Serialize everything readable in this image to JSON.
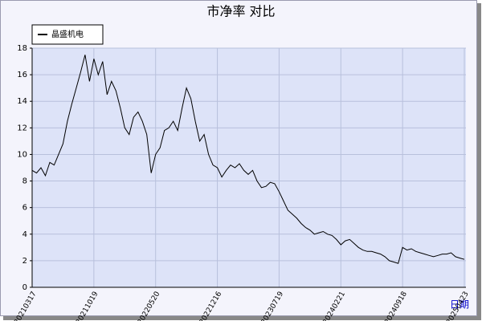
{
  "chart_data": {
    "type": "line",
    "title": "市净率  对比",
    "x_label": "日期",
    "categories": [
      "20210317",
      null,
      null,
      null,
      null,
      null,
      null,
      null,
      null,
      null,
      null,
      null,
      null,
      null,
      "20211019",
      null,
      null,
      null,
      null,
      null,
      null,
      null,
      null,
      null,
      null,
      null,
      null,
      null,
      "20220520",
      null,
      null,
      null,
      null,
      null,
      null,
      null,
      null,
      null,
      null,
      null,
      null,
      null,
      "20221216",
      null,
      null,
      null,
      null,
      null,
      null,
      null,
      null,
      null,
      null,
      null,
      null,
      null,
      "20230719",
      null,
      null,
      null,
      null,
      null,
      null,
      null,
      null,
      null,
      null,
      null,
      null,
      null,
      "20240221",
      null,
      null,
      null,
      null,
      null,
      null,
      null,
      null,
      null,
      null,
      null,
      null,
      null,
      "20240918",
      null,
      null,
      null,
      null,
      null,
      null,
      null,
      null,
      null,
      null,
      null,
      null,
      null,
      "20250423"
    ],
    "series": [
      {
        "name": "晶盛机电",
        "color": "#000000",
        "values": [
          8.8,
          8.6,
          9.0,
          8.4,
          9.4,
          9.2,
          10.0,
          10.8,
          12.5,
          13.8,
          15.0,
          16.2,
          17.5,
          15.5,
          17.2,
          16.0,
          17.0,
          14.5,
          15.5,
          14.8,
          13.5,
          12.0,
          11.5,
          12.8,
          13.2,
          12.5,
          11.5,
          8.6,
          10.0,
          10.5,
          11.8,
          12.0,
          12.5,
          11.8,
          13.5,
          15.0,
          14.2,
          12.5,
          11.0,
          11.5,
          10.0,
          9.2,
          9.0,
          8.3,
          8.8,
          9.2,
          9.0,
          9.3,
          8.8,
          8.5,
          8.8,
          8.0,
          7.5,
          7.6,
          7.9,
          7.8,
          7.2,
          6.5,
          5.8,
          5.5,
          5.2,
          4.8,
          4.5,
          4.3,
          4.0,
          4.1,
          4.2,
          4.0,
          3.9,
          3.6,
          3.2,
          3.5,
          3.6,
          3.3,
          3.0,
          2.8,
          2.7,
          2.7,
          2.6,
          2.5,
          2.3,
          2.0,
          1.9,
          1.8,
          3.0,
          2.8,
          2.9,
          2.7,
          2.6,
          2.5,
          2.4,
          2.3,
          2.4,
          2.5,
          2.5,
          2.6,
          2.3,
          2.2,
          2.1
        ]
      }
    ],
    "ylim": [
      0,
      18
    ],
    "yticks": [
      0,
      2,
      4,
      6,
      8,
      10,
      12,
      14,
      16,
      18
    ],
    "grid": true
  }
}
